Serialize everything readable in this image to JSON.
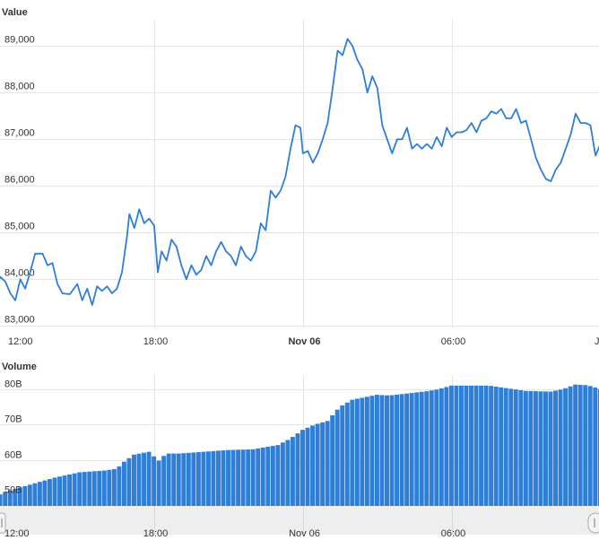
{
  "chart_data": [
    {
      "type": "line",
      "title": "Value",
      "xlabel": "",
      "ylabel": "",
      "ylim": [
        82950,
        89600
      ],
      "yticks": [
        "83,000",
        "84,000",
        "85,000",
        "86,000",
        "87,000",
        "88,000",
        "89,000"
      ],
      "xticks": [
        {
          "label": "12:00",
          "bold": false,
          "t": 0
        },
        {
          "label": "18:00",
          "bold": false,
          "t": 6
        },
        {
          "label": "Nov 06",
          "bold": true,
          "t": 12
        },
        {
          "label": "06:00",
          "bold": false,
          "t": 18
        },
        {
          "label": "J",
          "bold": false,
          "t": 24
        }
      ],
      "x_unit": "hours since Nov 05 12:00",
      "color": "#2f7ed8",
      "series": [
        {
          "name": "",
          "points": [
            [
              -0.4,
              83850
            ],
            [
              -0.2,
              84050
            ],
            [
              0.0,
              83950
            ],
            [
              0.2,
              83700
            ],
            [
              0.4,
              83550
            ],
            [
              0.6,
              84000
            ],
            [
              0.8,
              83800
            ],
            [
              1.0,
              84150
            ],
            [
              1.2,
              84550
            ],
            [
              1.5,
              84550
            ],
            [
              1.7,
              84300
            ],
            [
              1.9,
              84350
            ],
            [
              2.1,
              83900
            ],
            [
              2.3,
              83700
            ],
            [
              2.6,
              83680
            ],
            [
              2.9,
              83900
            ],
            [
              3.1,
              83550
            ],
            [
              3.3,
              83800
            ],
            [
              3.5,
              83450
            ],
            [
              3.7,
              83850
            ],
            [
              3.9,
              83750
            ],
            [
              4.1,
              83850
            ],
            [
              4.3,
              83700
            ],
            [
              4.5,
              83800
            ],
            [
              4.7,
              84150
            ],
            [
              4.9,
              84900
            ],
            [
              5.0,
              85400
            ],
            [
              5.2,
              85100
            ],
            [
              5.4,
              85500
            ],
            [
              5.6,
              85200
            ],
            [
              5.8,
              85300
            ],
            [
              6.0,
              85150
            ],
            [
              6.15,
              84150
            ],
            [
              6.3,
              84600
            ],
            [
              6.5,
              84400
            ],
            [
              6.7,
              84850
            ],
            [
              6.9,
              84700
            ],
            [
              7.1,
              84300
            ],
            [
              7.3,
              84000
            ],
            [
              7.5,
              84300
            ],
            [
              7.7,
              84100
            ],
            [
              7.9,
              84200
            ],
            [
              8.1,
              84500
            ],
            [
              8.3,
              84300
            ],
            [
              8.5,
              84600
            ],
            [
              8.7,
              84800
            ],
            [
              8.9,
              84600
            ],
            [
              9.1,
              84500
            ],
            [
              9.3,
              84300
            ],
            [
              9.5,
              84700
            ],
            [
              9.7,
              84500
            ],
            [
              9.9,
              84400
            ],
            [
              10.1,
              84600
            ],
            [
              10.3,
              85200
            ],
            [
              10.5,
              85050
            ],
            [
              10.7,
              85900
            ],
            [
              10.9,
              85750
            ],
            [
              11.1,
              85900
            ],
            [
              11.3,
              86200
            ],
            [
              11.5,
              86800
            ],
            [
              11.7,
              87300
            ],
            [
              11.9,
              87250
            ],
            [
              12.0,
              86700
            ],
            [
              12.2,
              86750
            ],
            [
              12.4,
              86500
            ],
            [
              12.6,
              86700
            ],
            [
              12.8,
              87000
            ],
            [
              13.0,
              87350
            ],
            [
              13.2,
              88100
            ],
            [
              13.4,
              88900
            ],
            [
              13.6,
              88800
            ],
            [
              13.8,
              89150
            ],
            [
              14.0,
              89000
            ],
            [
              14.2,
              88700
            ],
            [
              14.4,
              88500
            ],
            [
              14.6,
              88000
            ],
            [
              14.8,
              88350
            ],
            [
              15.0,
              88100
            ],
            [
              15.2,
              87300
            ],
            [
              15.4,
              87000
            ],
            [
              15.6,
              86700
            ],
            [
              15.8,
              87000
            ],
            [
              16.0,
              87000
            ],
            [
              16.2,
              87250
            ],
            [
              16.4,
              86800
            ],
            [
              16.6,
              86900
            ],
            [
              16.8,
              86800
            ],
            [
              17.0,
              86900
            ],
            [
              17.2,
              86800
            ],
            [
              17.4,
              87050
            ],
            [
              17.6,
              86850
            ],
            [
              17.8,
              87250
            ],
            [
              18.0,
              87050
            ],
            [
              18.2,
              87150
            ],
            [
              18.4,
              87150
            ],
            [
              18.6,
              87200
            ],
            [
              18.8,
              87350
            ],
            [
              19.0,
              87150
            ],
            [
              19.2,
              87400
            ],
            [
              19.4,
              87450
            ],
            [
              19.6,
              87600
            ],
            [
              19.8,
              87550
            ],
            [
              20.0,
              87650
            ],
            [
              20.2,
              87450
            ],
            [
              20.4,
              87450
            ],
            [
              20.6,
              87650
            ],
            [
              20.8,
              87350
            ],
            [
              21.0,
              87400
            ],
            [
              21.2,
              87000
            ],
            [
              21.4,
              86600
            ],
            [
              21.6,
              86350
            ],
            [
              21.8,
              86150
            ],
            [
              22.0,
              86100
            ],
            [
              22.2,
              86350
            ],
            [
              22.4,
              86500
            ],
            [
              22.6,
              86800
            ],
            [
              22.8,
              87100
            ],
            [
              23.0,
              87550
            ],
            [
              23.2,
              87350
            ],
            [
              23.4,
              87350
            ],
            [
              23.6,
              87300
            ],
            [
              23.8,
              86650
            ],
            [
              24.0,
              86900
            ],
            [
              24.2,
              86800
            ]
          ]
        }
      ]
    },
    {
      "type": "bar",
      "title": "Volume",
      "xlabel": "",
      "ylabel": "",
      "ylim": [
        47000000000,
        84000000000
      ],
      "yticks": [
        "50B",
        "60B",
        "70B",
        "80B"
      ],
      "color": "#2f7ed8",
      "bar_interval_hours": 0.2,
      "series": [
        {
          "name": "",
          "points": [
            [
              -0.4,
              49500000000
            ],
            [
              0.0,
              51000000000
            ],
            [
              1.0,
              53000000000
            ],
            [
              2.0,
              55000000000
            ],
            [
              3.0,
              56500000000
            ],
            [
              4.0,
              57000000000
            ],
            [
              4.5,
              57500000000
            ],
            [
              4.8,
              59500000000
            ],
            [
              5.2,
              61500000000
            ],
            [
              5.8,
              62300000000
            ],
            [
              6.0,
              61000000000
            ],
            [
              6.2,
              59800000000
            ],
            [
              6.5,
              61800000000
            ],
            [
              7.0,
              61800000000
            ],
            [
              8.0,
              62300000000
            ],
            [
              9.0,
              62800000000
            ],
            [
              10.0,
              63000000000
            ],
            [
              11.0,
              64200000000
            ],
            [
              11.5,
              66000000000
            ],
            [
              12.0,
              68500000000
            ],
            [
              12.5,
              70000000000
            ],
            [
              13.0,
              71000000000
            ],
            [
              13.5,
              75000000000
            ],
            [
              14.0,
              77000000000
            ],
            [
              15.0,
              78400000000
            ],
            [
              15.5,
              78200000000
            ],
            [
              16.0,
              78600000000
            ],
            [
              17.0,
              79400000000
            ],
            [
              17.5,
              80000000000
            ],
            [
              18.0,
              81000000000
            ],
            [
              19.0,
              81000000000
            ],
            [
              19.5,
              81000000000
            ],
            [
              20.0,
              80500000000
            ],
            [
              21.0,
              79500000000
            ],
            [
              22.0,
              79300000000
            ],
            [
              22.5,
              80000000000
            ],
            [
              23.0,
              81300000000
            ],
            [
              23.5,
              81100000000
            ],
            [
              24.0,
              80000000000
            ],
            [
              24.2,
              79800000000
            ]
          ]
        }
      ]
    },
    {
      "type": "area",
      "role": "navigator",
      "xticks": [
        "12:00",
        "18:00",
        "Nov 06",
        "06:00"
      ]
    }
  ],
  "footer_text": ""
}
